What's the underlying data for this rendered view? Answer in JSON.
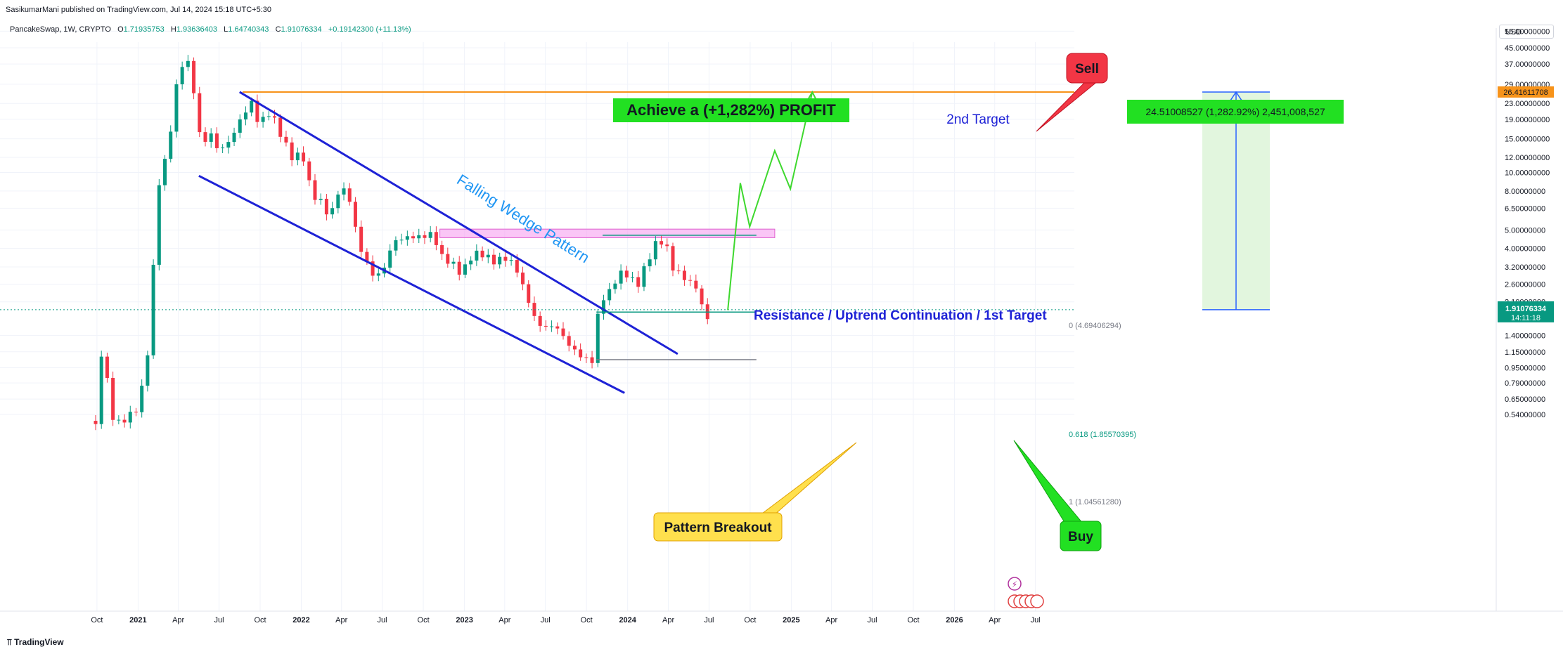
{
  "header": {
    "publisher_line": "SasikumarMani published on TradingView.com, Jul 14, 2024 15:18 UTC+5:30",
    "symbol": "PancakeSwap, 1W, CRYPTO",
    "open_label": "O",
    "open": "1.71935753",
    "high_label": "H",
    "high": "1.93636403",
    "low_label": "L",
    "low": "1.64740343",
    "close_label": "C",
    "close": "1.91076334",
    "change": "+0.19142300 (+11.13%)"
  },
  "currency_button": "USD",
  "footer_logo": "TradingView",
  "colors": {
    "up": "#089981",
    "down": "#F23645",
    "orange": "#F7931A",
    "blue": "#1E22D6",
    "green_label": "#22E022",
    "sell_red": "#F23645",
    "pink": "#F7A0F0",
    "teal": "#089981"
  },
  "chart_data": {
    "type": "candlestick",
    "y_scale": "log",
    "ylim": [
      0.46,
      56
    ],
    "x_ticks": [
      "Oct",
      "2021",
      "Apr",
      "Jul",
      "Oct",
      "2022",
      "Apr",
      "Jul",
      "Oct",
      "2023",
      "Apr",
      "Jul",
      "Oct",
      "2024",
      "Apr",
      "Jul",
      "Oct",
      "2025",
      "Apr",
      "Jul",
      "Oct",
      "2026",
      "Apr",
      "Jul"
    ],
    "y_ticks": [
      "55.00000000",
      "45.00000000",
      "37.00000000",
      "29.00000000",
      "23.00000000",
      "19.00000000",
      "15.00000000",
      "12.00000000",
      "10.00000000",
      "8.00000000",
      "6.50000000",
      "5.00000000",
      "4.00000000",
      "3.20000000",
      "2.60000000",
      "2.10000000",
      "1.40000000",
      "1.15000000",
      "0.95000000",
      "0.79000000",
      "0.65000000",
      "0.54000000"
    ],
    "current_price": "1.91076334",
    "current_countdown": "14:11:18",
    "target_price_label": "26.41611708",
    "anchors": [
      [
        "2020-09-28",
        0.5
      ],
      [
        "2020-10-12",
        1.3
      ],
      [
        "2020-11-09",
        0.5
      ],
      [
        "2020-12-21",
        0.55
      ],
      [
        "2021-01-04",
        0.6
      ],
      [
        "2021-01-25",
        1.2
      ],
      [
        "2021-02-15",
        8.0
      ],
      [
        "2021-03-08",
        12.0
      ],
      [
        "2021-03-29",
        28.0
      ],
      [
        "2021-04-19",
        42.0
      ],
      [
        "2021-04-26",
        32.0
      ],
      [
        "2021-05-10",
        24.0
      ],
      [
        "2021-05-24",
        12.5
      ],
      [
        "2021-06-07",
        18.0
      ],
      [
        "2021-06-28",
        14.0
      ],
      [
        "2021-07-19",
        15.0
      ],
      [
        "2021-08-23",
        21.0
      ],
      [
        "2021-09-13",
        24.0
      ],
      [
        "2021-09-27",
        18.0
      ],
      [
        "2021-10-25",
        20.0
      ],
      [
        "2021-11-15",
        15.0
      ],
      [
        "2021-12-13",
        11.0
      ],
      [
        "2022-01-03",
        12.0
      ],
      [
        "2022-01-24",
        7.5
      ],
      [
        "2022-02-14",
        7.0
      ],
      [
        "2022-03-07",
        6.0
      ],
      [
        "2022-03-28",
        9.0
      ],
      [
        "2022-04-18",
        8.0
      ],
      [
        "2022-05-09",
        4.5
      ],
      [
        "2022-06-13",
        2.9
      ],
      [
        "2022-07-04",
        3.1
      ],
      [
        "2022-07-25",
        4.2
      ],
      [
        "2022-08-29",
        4.3
      ],
      [
        "2022-09-26",
        4.3
      ],
      [
        "2022-10-24",
        4.6
      ],
      [
        "2022-11-07",
        3.6
      ],
      [
        "2022-12-05",
        3.4
      ],
      [
        "2022-12-26",
        3.1
      ],
      [
        "2023-01-16",
        3.9
      ],
      [
        "2023-02-06",
        4.1
      ],
      [
        "2023-03-06",
        3.6
      ],
      [
        "2023-04-03",
        3.6
      ],
      [
        "2023-04-24",
        3.2
      ],
      [
        "2023-05-15",
        2.3
      ],
      [
        "2023-06-12",
        1.5
      ],
      [
        "2023-07-03",
        1.45
      ],
      [
        "2023-07-24",
        1.5
      ],
      [
        "2023-08-21",
        1.25
      ],
      [
        "2023-09-11",
        1.15
      ],
      [
        "2023-10-02",
        1.1
      ],
      [
        "2023-10-16",
        1.1
      ],
      [
        "2023-10-30",
        2.3
      ],
      [
        "2023-11-20",
        2.5
      ],
      [
        "2023-12-11",
        3.1
      ],
      [
        "2024-01-01",
        3.0
      ],
      [
        "2024-01-22",
        2.5
      ],
      [
        "2024-02-12",
        3.2
      ],
      [
        "2024-03-04",
        4.0
      ],
      [
        "2024-03-25",
        4.1
      ],
      [
        "2024-04-08",
        3.0
      ],
      [
        "2024-05-06",
        2.7
      ],
      [
        "2024-06-03",
        2.5
      ],
      [
        "2024-06-24",
        1.75
      ],
      [
        "2024-07-08",
        1.91
      ]
    ],
    "annotations": {
      "achieve_profit": "Achieve a (+1,282%)  PROFIT",
      "second_target": "2nd Target",
      "sell": "Sell",
      "measure": "24.51008527 (1,282.92%) 2,451,008,527",
      "falling_wedge": "Falling Wedge Pattern",
      "resistance": "Resistance / Uptrend Continuation / 1st Target",
      "fib_0": "0 (4.69406294)",
      "fib_618": "0.618 (1.85570395)",
      "fib_1": "1 (1.04561280)",
      "pattern_breakout": "Pattern Breakout",
      "buy": "Buy"
    }
  }
}
